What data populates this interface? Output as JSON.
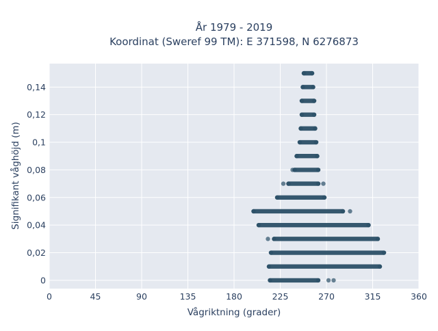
{
  "chart_data": {
    "type": "scatter",
    "title_line1": "År 1979 - 2019",
    "title_line2": "Koordinat (Sweref 99 TM): E 371598, N 6276873",
    "xlabel": "Vågriktning (grader)",
    "ylabel": "Signifikant våghöjd (m)",
    "xlim": [
      0,
      360
    ],
    "ylim": [
      -0.006,
      0.157
    ],
    "x_ticks": [
      0,
      45,
      90,
      135,
      180,
      225,
      270,
      315,
      360
    ],
    "x_tick_labels": [
      "0",
      "45",
      "90",
      "135",
      "180",
      "225",
      "270",
      "315",
      "360"
    ],
    "y_ticks": [
      0,
      0.02,
      0.04,
      0.06,
      0.08,
      0.1,
      0.12,
      0.14
    ],
    "y_tick_labels": [
      "0",
      "0,02",
      "0,04",
      "0,06",
      "0,08",
      "0,1",
      "0,12",
      "0,14"
    ],
    "grid": true,
    "point_color": "#2c5068",
    "plot_background": "#e5e9f0",
    "bands": [
      {
        "y": 0,
        "x_min": 215,
        "x_max": 262,
        "outliers": [
          272,
          277
        ]
      },
      {
        "y": 0.01,
        "x_min": 214,
        "x_max": 322,
        "outliers": []
      },
      {
        "y": 0.02,
        "x_min": 216,
        "x_max": 326,
        "outliers": []
      },
      {
        "y": 0.03,
        "x_min": 219,
        "x_max": 320,
        "outliers": [
          213
        ]
      },
      {
        "y": 0.04,
        "x_min": 204,
        "x_max": 311,
        "outliers": []
      },
      {
        "y": 0.05,
        "x_min": 199,
        "x_max": 286,
        "outliers": [
          293
        ]
      },
      {
        "y": 0.06,
        "x_min": 222,
        "x_max": 268,
        "outliers": []
      },
      {
        "y": 0.07,
        "x_min": 233,
        "x_max": 262,
        "outliers": [
          228,
          267
        ]
      },
      {
        "y": 0.08,
        "x_min": 239,
        "x_max": 262,
        "outliers": [
          237
        ]
      },
      {
        "y": 0.09,
        "x_min": 241,
        "x_max": 261,
        "outliers": []
      },
      {
        "y": 0.1,
        "x_min": 244,
        "x_max": 260,
        "outliers": []
      },
      {
        "y": 0.11,
        "x_min": 245,
        "x_max": 259,
        "outliers": []
      },
      {
        "y": 0.12,
        "x_min": 246,
        "x_max": 258,
        "outliers": []
      },
      {
        "y": 0.13,
        "x_min": 246,
        "x_max": 258,
        "outliers": []
      },
      {
        "y": 0.14,
        "x_min": 247,
        "x_max": 257,
        "outliers": []
      },
      {
        "y": 0.15,
        "x_min": 248,
        "x_max": 256,
        "outliers": []
      }
    ]
  }
}
